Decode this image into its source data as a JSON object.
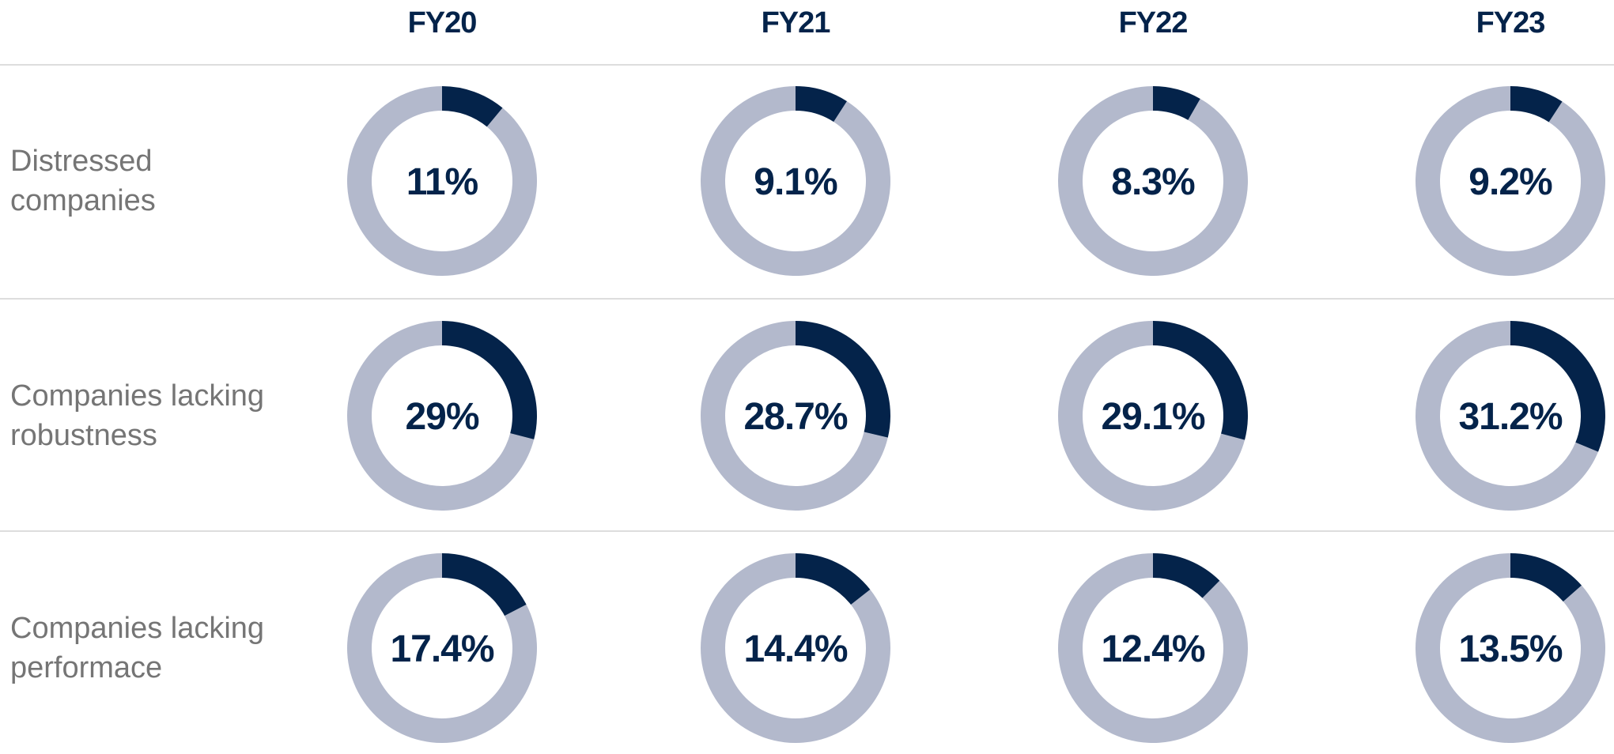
{
  "chart_data": {
    "type": "pie",
    "style": "donut-grid",
    "columns": [
      "FY20",
      "FY21",
      "FY22",
      "FY23"
    ],
    "rows": [
      {
        "label": "Distressed companies",
        "label_lines": [
          "Distressed",
          "companies"
        ],
        "values": [
          11,
          9.1,
          8.3,
          9.2
        ],
        "value_labels": [
          "11%",
          "9.1%",
          "8.3%",
          "9.2%"
        ]
      },
      {
        "label": "Companies lacking robustness",
        "label_lines": [
          "Companies lacking",
          "robustness"
        ],
        "values": [
          29,
          28.7,
          29.1,
          31.2
        ],
        "value_labels": [
          "29%",
          "28.7%",
          "29.1%",
          "31.2%"
        ]
      },
      {
        "label": "Companies lacking performace",
        "label_lines": [
          "Companies lacking",
          "performace"
        ],
        "values": [
          17.4,
          14.4,
          12.4,
          13.5
        ],
        "value_labels": [
          "17.4%",
          "14.4%",
          "12.4%",
          "13.5%"
        ]
      }
    ],
    "colors": {
      "filled": "#04234a",
      "remainder": "#b3b9cc",
      "header_text": "#04234a",
      "row_label_text": "#757575",
      "value_text": "#04234a",
      "divider": "#dddddd"
    }
  }
}
